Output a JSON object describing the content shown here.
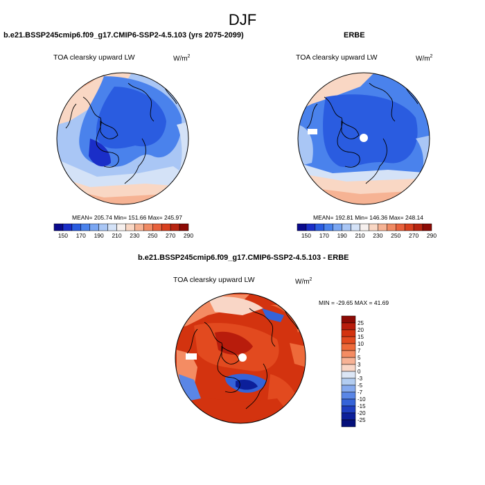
{
  "title": "DJF",
  "panels": [
    {
      "id": "model",
      "title": "b.e21.BSSP245cmip6.f09_g17.CMIP6-SSP2-4.5.103 (yrs 2075-2099)",
      "variable": "TOA clearsky upward LW",
      "units_base": "W/m",
      "units_exp": "2",
      "stats": "MEAN= 205.74  Min= 151.66  Max= 245.97"
    },
    {
      "id": "obs",
      "title": "ERBE",
      "variable": "TOA clearsky upward LW",
      "units_base": "W/m",
      "units_exp": "2",
      "stats": "MEAN= 192.81  Min= 146.36  Max= 248.14"
    },
    {
      "id": "diff",
      "title": "b.e21.BSSP245cmip6.f09_g17.CMIP6-SSP2-4.5.103 - ERBE",
      "variable": "TOA clearsky upward LW",
      "units_base": "W/m",
      "units_exp": "2",
      "stats": "MIN = -29.65 MAX =  41.69"
    }
  ],
  "colorbar_abs": {
    "labels": [
      "150",
      "170",
      "190",
      "210",
      "230",
      "250",
      "270",
      "290"
    ],
    "colors": [
      "#0a0a8c",
      "#1a2ec8",
      "#2a5ce0",
      "#4a82ec",
      "#7aa6f2",
      "#a9c6f5",
      "#d4e2f7",
      "#f6f0ee",
      "#f9d7c4",
      "#f6b394",
      "#f08a63",
      "#e8613c",
      "#d8401f",
      "#b82410",
      "#8c0a05"
    ]
  },
  "colorbar_diff": {
    "labels": [
      "25",
      "20",
      "15",
      "10",
      "7",
      "5",
      "3",
      "0",
      "-3",
      "-5",
      "-7",
      "-10",
      "-15",
      "-20",
      "-25"
    ],
    "colors": [
      "#8c0a05",
      "#b81c0c",
      "#d3330f",
      "#e24a1f",
      "#ee6a3a",
      "#f48c63",
      "#f7b295",
      "#f9d6c6",
      "#dce6f5",
      "#b3cdf1",
      "#86aaee",
      "#5a86e6",
      "#3563d8",
      "#1e3ec0",
      "#0c1f9a",
      "#05107a"
    ]
  }
}
